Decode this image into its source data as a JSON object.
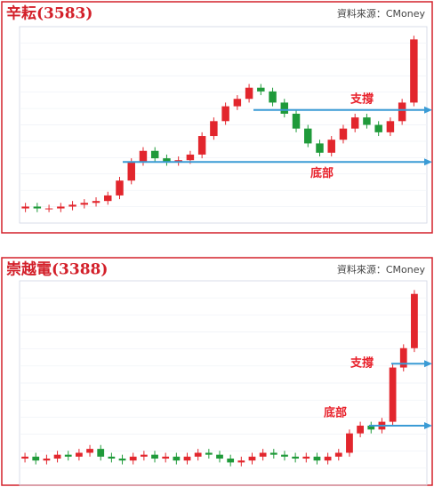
{
  "chart_data": [
    {
      "type": "candlestick",
      "title": "辛耘(3583)",
      "source": "資料來源：CMoney",
      "ylim": [
        0,
        100
      ],
      "up_color": "#e2262d",
      "down_color": "#1f9a3a",
      "arrow_color": "#3a9bd5",
      "open": [
        5,
        6,
        5,
        5,
        6,
        7,
        8,
        9,
        12,
        20,
        30,
        36,
        32,
        30,
        31,
        34,
        44,
        52,
        60,
        64,
        70,
        68,
        62,
        56,
        48,
        40,
        35,
        42,
        48,
        54,
        50,
        46,
        52,
        62
      ],
      "high": [
        8,
        8,
        7,
        8,
        9,
        10,
        11,
        14,
        22,
        32,
        38,
        38,
        34,
        33,
        36,
        46,
        54,
        62,
        66,
        72,
        72,
        70,
        64,
        58,
        50,
        42,
        44,
        50,
        56,
        56,
        52,
        54,
        64,
        98
      ],
      "low": [
        3,
        3,
        3,
        3,
        4,
        5,
        6,
        7,
        10,
        18,
        28,
        30,
        28,
        28,
        29,
        32,
        42,
        50,
        58,
        62,
        66,
        60,
        54,
        46,
        38,
        33,
        33,
        40,
        46,
        48,
        44,
        44,
        50,
        60
      ],
      "close": [
        6,
        5,
        5,
        6,
        7,
        8,
        9,
        12,
        20,
        30,
        36,
        32,
        30,
        31,
        34,
        44,
        52,
        60,
        64,
        70,
        68,
        62,
        56,
        48,
        40,
        35,
        42,
        48,
        54,
        50,
        46,
        52,
        62,
        96
      ],
      "annotations": [
        {
          "text": "支撐",
          "level": 58
        },
        {
          "text": "底部",
          "level": 30
        }
      ]
    },
    {
      "type": "candlestick",
      "title": "崇越電(3388)",
      "source": "資料來源：CMoney",
      "ylim": [
        0,
        100
      ],
      "up_color": "#e2262d",
      "down_color": "#1f9a3a",
      "arrow_color": "#3a9bd5",
      "open": [
        11,
        12,
        10,
        11,
        13,
        12,
        14,
        16,
        12,
        11,
        10,
        12,
        13,
        11,
        12,
        10,
        12,
        14,
        13,
        11,
        9,
        10,
        12,
        14,
        13,
        12,
        11,
        12,
        10,
        12,
        14,
        24,
        28,
        26,
        30,
        58,
        68
      ],
      "high": [
        14,
        14,
        13,
        15,
        15,
        16,
        18,
        18,
        14,
        13,
        14,
        15,
        15,
        14,
        14,
        14,
        16,
        16,
        15,
        13,
        12,
        14,
        16,
        16,
        15,
        14,
        14,
        14,
        14,
        16,
        26,
        30,
        30,
        32,
        60,
        70,
        98
      ],
      "low": [
        9,
        8,
        8,
        9,
        10,
        10,
        12,
        10,
        9,
        8,
        8,
        10,
        9,
        9,
        8,
        8,
        10,
        11,
        9,
        7,
        7,
        8,
        10,
        11,
        10,
        9,
        9,
        8,
        8,
        10,
        12,
        22,
        24,
        24,
        28,
        56,
        66
      ],
      "close": [
        12,
        10,
        11,
        13,
        12,
        14,
        16,
        12,
        11,
        10,
        12,
        13,
        11,
        12,
        10,
        12,
        14,
        13,
        11,
        9,
        10,
        12,
        14,
        13,
        12,
        11,
        12,
        10,
        12,
        14,
        24,
        28,
        26,
        30,
        58,
        68,
        96
      ],
      "annotations": [
        {
          "text": "底部",
          "level": 28
        },
        {
          "text": "支撐",
          "level": 60
        }
      ]
    }
  ]
}
